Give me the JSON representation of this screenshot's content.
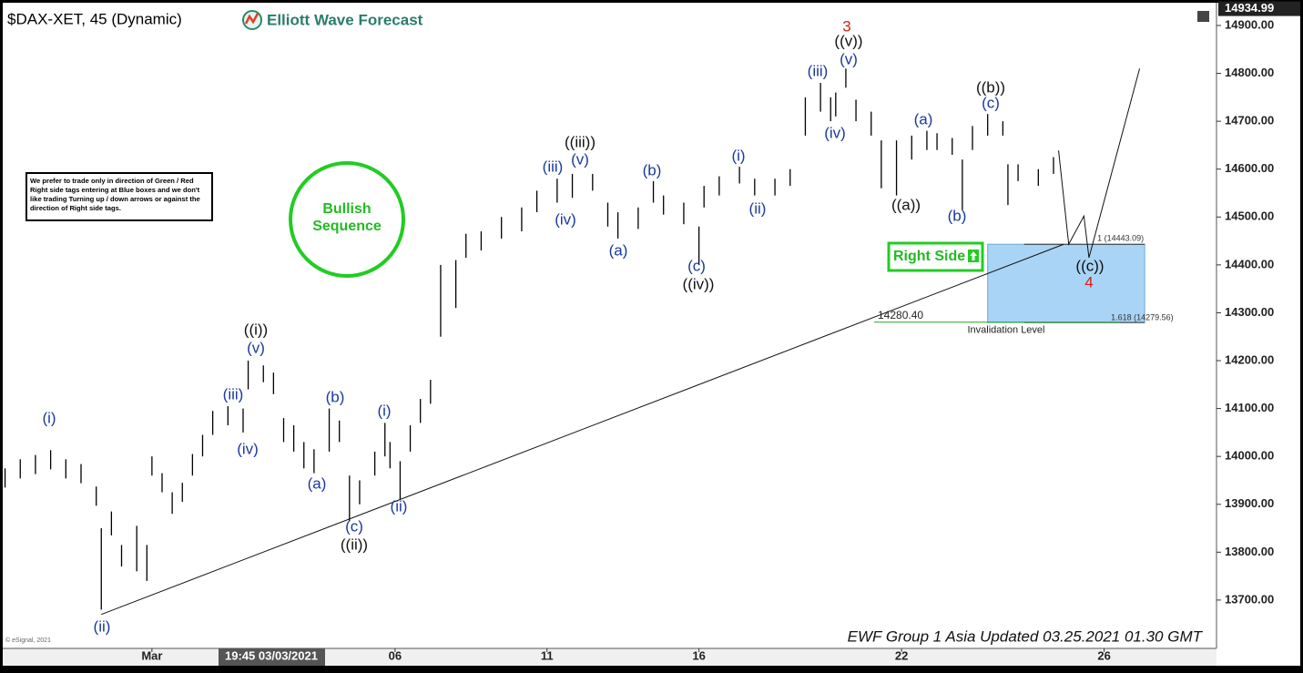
{
  "chart_data": {
    "type": "ohlc",
    "title": "$DAX-XET, 45 (Dynamic)",
    "brand": "Elliott Wave Forecast",
    "last_price": 14934.99,
    "note": "We prefer to trade only in direction of Green / Red Right side tags entering at Blue boxes and we don't like trading Turning up / down arrows or against the direction of Right side tags.",
    "badge": [
      "Bullish",
      "Sequence"
    ],
    "right_side": "Right Side",
    "footer": "EWF Group 1 Asia Updated 03.25.2021 01.30 GMT",
    "cursor_time": "19:45 03/03/2021",
    "copyright": "© eSignal, 2021",
    "xlim": [
      0,
      240
    ],
    "ylim": [
      13599,
      14938
    ],
    "xticks": [
      {
        "value": 30,
        "label": "Mar"
      },
      {
        "value": 78,
        "label": "06"
      },
      {
        "value": 108,
        "label": "11"
      },
      {
        "value": 138,
        "label": "16"
      },
      {
        "value": 178,
        "label": "22"
      },
      {
        "value": 218,
        "label": "26"
      }
    ],
    "yticks": [
      {
        "value": 13700,
        "label": "13700.00"
      },
      {
        "value": 13800,
        "label": "13800.00"
      },
      {
        "value": 13900,
        "label": "13900.00"
      },
      {
        "value": 14000,
        "label": "14000.00"
      },
      {
        "value": 14100,
        "label": "14100.00"
      },
      {
        "value": 14200,
        "label": "14200.00"
      },
      {
        "value": 14300,
        "label": "14300.00"
      },
      {
        "value": 14400,
        "label": "14400.00"
      },
      {
        "value": 14500,
        "label": "14500.00"
      },
      {
        "value": 14600,
        "label": "14600.00"
      },
      {
        "value": 14700,
        "label": "14700.00"
      },
      {
        "value": 14800,
        "label": "14800.00"
      },
      {
        "value": 14900,
        "label": "14900.00"
      }
    ],
    "bar_color": "#000000",
    "bars": [
      {
        "x": 1,
        "high": 13975,
        "low": 13935
      },
      {
        "x": 4,
        "high": 13994,
        "low": 13954
      },
      {
        "x": 7,
        "high": 14003,
        "low": 13963
      },
      {
        "x": 10,
        "high": 14013,
        "low": 13973
      },
      {
        "x": 13,
        "high": 13994,
        "low": 13954
      },
      {
        "x": 16,
        "high": 13984,
        "low": 13944
      },
      {
        "x": 19,
        "high": 13937,
        "low": 13897
      },
      {
        "x": 20,
        "high": 13850,
        "low": 13680
      },
      {
        "x": 22,
        "high": 13885,
        "low": 13835
      },
      {
        "x": 24,
        "high": 13815,
        "low": 13770
      },
      {
        "x": 27,
        "high": 13855,
        "low": 13760
      },
      {
        "x": 29,
        "high": 13815,
        "low": 13740
      },
      {
        "x": 30,
        "high": 14000,
        "low": 13960
      },
      {
        "x": 32,
        "high": 13965,
        "low": 13925
      },
      {
        "x": 34,
        "high": 13925,
        "low": 13880
      },
      {
        "x": 36,
        "high": 13945,
        "low": 13905
      },
      {
        "x": 38,
        "high": 14005,
        "low": 13960
      },
      {
        "x": 40,
        "high": 14045,
        "low": 14000
      },
      {
        "x": 42,
        "high": 14095,
        "low": 14045
      },
      {
        "x": 45,
        "high": 14105,
        "low": 14065
      },
      {
        "x": 48,
        "high": 14100,
        "low": 14050
      },
      {
        "x": 49,
        "high": 14200,
        "low": 14140
      },
      {
        "x": 52,
        "high": 14190,
        "low": 14155
      },
      {
        "x": 54,
        "high": 14175,
        "low": 14130
      },
      {
        "x": 56,
        "high": 14080,
        "low": 14030
      },
      {
        "x": 58,
        "high": 14065,
        "low": 14010
      },
      {
        "x": 60,
        "high": 14030,
        "low": 13975
      },
      {
        "x": 62,
        "high": 14015,
        "low": 13965
      },
      {
        "x": 65,
        "high": 14100,
        "low": 14010
      },
      {
        "x": 67,
        "high": 14075,
        "low": 14030
      },
      {
        "x": 69,
        "high": 13960,
        "low": 13865
      },
      {
        "x": 71,
        "high": 13950,
        "low": 13900
      },
      {
        "x": 74,
        "high": 14010,
        "low": 13960
      },
      {
        "x": 76,
        "high": 14070,
        "low": 14000
      },
      {
        "x": 77,
        "high": 14030,
        "low": 13975
      },
      {
        "x": 79,
        "high": 13990,
        "low": 13910
      },
      {
        "x": 81,
        "high": 14065,
        "low": 14010
      },
      {
        "x": 83,
        "high": 14120,
        "low": 14070
      },
      {
        "x": 85,
        "high": 14160,
        "low": 14110
      },
      {
        "x": 87,
        "high": 14400,
        "low": 14250
      },
      {
        "x": 90,
        "high": 14410,
        "low": 14310
      },
      {
        "x": 92,
        "high": 14465,
        "low": 14415
      },
      {
        "x": 95,
        "high": 14470,
        "low": 14430
      },
      {
        "x": 99,
        "high": 14500,
        "low": 14455
      },
      {
        "x": 103,
        "high": 14520,
        "low": 14470
      },
      {
        "x": 106,
        "high": 14555,
        "low": 14510
      },
      {
        "x": 110,
        "high": 14580,
        "low": 14530
      },
      {
        "x": 113,
        "high": 14590,
        "low": 14540
      },
      {
        "x": 117,
        "high": 14590,
        "low": 14555
      },
      {
        "x": 120,
        "high": 14530,
        "low": 14480
      },
      {
        "x": 122,
        "high": 14510,
        "low": 14455
      },
      {
        "x": 126,
        "high": 14520,
        "low": 14475
      },
      {
        "x": 129,
        "high": 14575,
        "low": 14530
      },
      {
        "x": 131,
        "high": 14545,
        "low": 14505
      },
      {
        "x": 135,
        "high": 14530,
        "low": 14485
      },
      {
        "x": 138,
        "high": 14480,
        "low": 14400
      },
      {
        "x": 139,
        "high": 14565,
        "low": 14520
      },
      {
        "x": 142,
        "high": 14585,
        "low": 14545
      },
      {
        "x": 146,
        "high": 14605,
        "low": 14570
      },
      {
        "x": 149,
        "high": 14580,
        "low": 14545
      },
      {
        "x": 153,
        "high": 14580,
        "low": 14545
      },
      {
        "x": 156,
        "high": 14600,
        "low": 14565
      },
      {
        "x": 159,
        "high": 14750,
        "low": 14670
      },
      {
        "x": 162,
        "high": 14780,
        "low": 14720
      },
      {
        "x": 164,
        "high": 14750,
        "low": 14700
      },
      {
        "x": 165,
        "high": 14760,
        "low": 14710
      },
      {
        "x": 167,
        "high": 14810,
        "low": 14770
      },
      {
        "x": 169,
        "high": 14745,
        "low": 14700
      },
      {
        "x": 172,
        "high": 14720,
        "low": 14670
      },
      {
        "x": 174,
        "high": 14660,
        "low": 14560
      },
      {
        "x": 177,
        "high": 14660,
        "low": 14545
      },
      {
        "x": 180,
        "high": 14670,
        "low": 14620
      },
      {
        "x": 183,
        "high": 14680,
        "low": 14640
      },
      {
        "x": 185,
        "high": 14675,
        "low": 14640
      },
      {
        "x": 188,
        "high": 14665,
        "low": 14630
      },
      {
        "x": 190,
        "high": 14620,
        "low": 14515
      },
      {
        "x": 192,
        "high": 14690,
        "low": 14640
      },
      {
        "x": 195,
        "high": 14715,
        "low": 14670
      },
      {
        "x": 198,
        "high": 14700,
        "low": 14670
      },
      {
        "x": 199,
        "high": 14610,
        "low": 14525
      },
      {
        "x": 201,
        "high": 14610,
        "low": 14575
      },
      {
        "x": 205,
        "high": 14600,
        "low": 14565
      },
      {
        "x": 208,
        "high": 14625,
        "low": 14590
      }
    ],
    "trendline": {
      "x": [
        20,
        210
      ],
      "values": [
        13670,
        14443
      ]
    },
    "projection": {
      "x": [
        209,
        211,
        214,
        215,
        225
      ],
      "values": [
        14639,
        14443,
        14502,
        14415,
        14810
      ]
    },
    "target_zone": {
      "x": [
        195,
        226
      ],
      "color": "#a9d4f5"
    },
    "fib_levels": [
      {
        "value": 14443.09,
        "label": "1 (14443.09)"
      },
      {
        "value": 14279.56,
        "label": "1.618 (14279.56)"
      }
    ],
    "invalidation": {
      "value": {
        "value": 14280.4,
        "label": "14280.40"
      },
      "text": "Invalidation Level"
    },
    "wave_labels": [
      {
        "text": "(i)",
        "color": "#1a3a9c"
      },
      {
        "text": "(ii)",
        "color": "#1a3a9c"
      },
      {
        "text": "(iii)",
        "color": "#1a3a9c"
      },
      {
        "text": "(iv)",
        "color": "#1a3a9c"
      },
      {
        "text": "(v)",
        "color": "#1a3a9c"
      },
      {
        "text": "((i))",
        "color": "#111111"
      },
      {
        "text": "(a)",
        "color": "#1a3a9c"
      },
      {
        "text": "(b)",
        "color": "#1a3a9c"
      },
      {
        "text": "(c)",
        "color": "#1a3a9c"
      },
      {
        "text": "((ii))",
        "color": "#111111"
      },
      {
        "text": "(i)",
        "color": "#1a3a9c"
      },
      {
        "text": "(ii)",
        "color": "#1a3a9c"
      },
      {
        "text": "(iii)",
        "color": "#1a3a9c"
      },
      {
        "text": "(iv)",
        "color": "#1a3a9c"
      },
      {
        "text": "(v)",
        "color": "#1a3a9c"
      },
      {
        "text": "((iii))",
        "color": "#111111"
      },
      {
        "text": "(a)",
        "color": "#1a3a9c"
      },
      {
        "text": "(b)",
        "color": "#1a3a9c"
      },
      {
        "text": "(c)",
        "color": "#1a3a9c"
      },
      {
        "text": "((iv))",
        "color": "#111111"
      },
      {
        "text": "(i)",
        "color": "#1a3a9c"
      },
      {
        "text": "(ii)",
        "color": "#1a3a9c"
      },
      {
        "text": "(iii)",
        "color": "#1a3a9c"
      },
      {
        "text": "(iv)",
        "color": "#1a3a9c"
      },
      {
        "text": "(v)",
        "color": "#1a3a9c"
      },
      {
        "text": "((v))",
        "color": "#111111"
      },
      {
        "text": "3",
        "color": "#d0201a"
      },
      {
        "text": "((a))",
        "color": "#111111"
      },
      {
        "text": "(a)",
        "color": "#1a3a9c"
      },
      {
        "text": "(b)",
        "color": "#1a3a9c"
      },
      {
        "text": "(c)",
        "color": "#1a3a9c"
      },
      {
        "text": "((b))",
        "color": "#111111"
      },
      {
        "text": "((c))",
        "color": "#111111"
      },
      {
        "text": "4",
        "color": "#d0201a"
      }
    ]
  }
}
